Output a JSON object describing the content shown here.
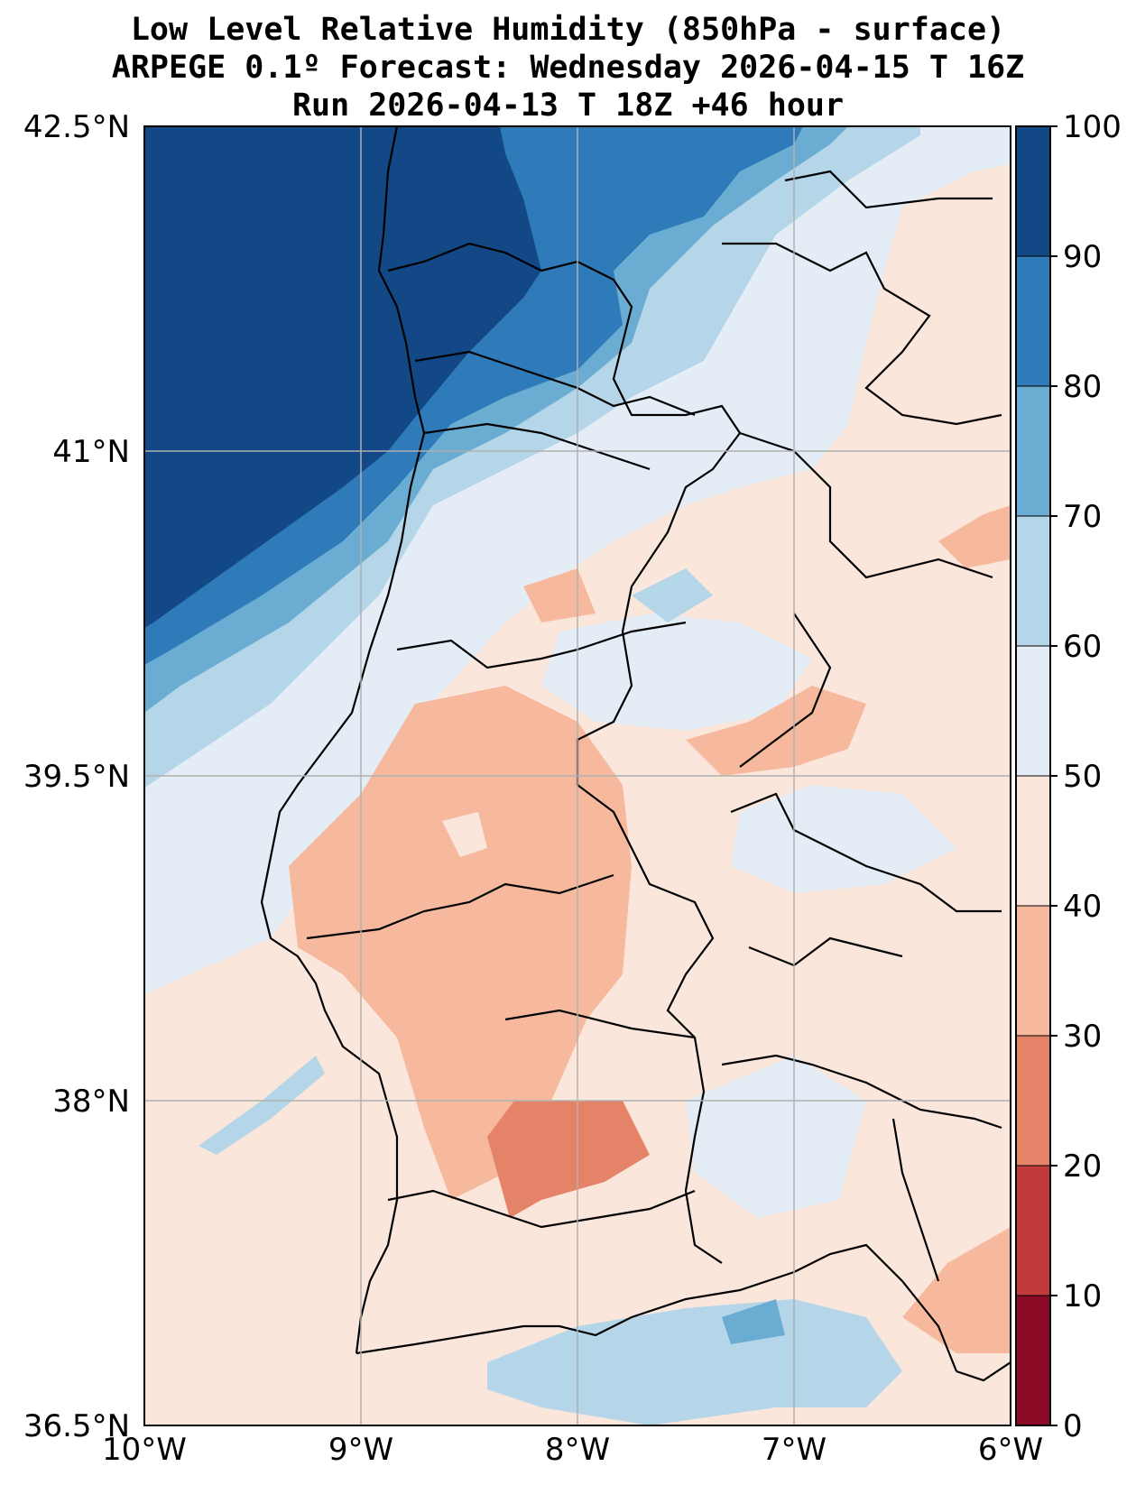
{
  "title": {
    "line1": "Low Level Relative Humidity (850hPa - surface)",
    "line2": "ARPEGE 0.1º Forecast: Wednesday 2026-04-15 T 16Z",
    "line3": "Run 2026-04-13 T 18Z +46 hour"
  },
  "map": {
    "lon_range": [
      -10,
      -6
    ],
    "lat_range": [
      36.5,
      42.5
    ],
    "lon_labels": [
      "10°W",
      "9°W",
      "8°W",
      "7°W",
      "6°W"
    ],
    "lat_labels": [
      "42.5°N",
      "41°N",
      "39.5°N",
      "38°N",
      "36.5°N"
    ],
    "gridlines": true
  },
  "colorbar": {
    "ticks": [
      "0",
      "10",
      "20",
      "30",
      "40",
      "50",
      "60",
      "70",
      "80",
      "90",
      "100"
    ],
    "levels": [
      {
        "range": "0-10",
        "color": "#8b0a26"
      },
      {
        "range": "10-20",
        "color": "#c13b3c"
      },
      {
        "range": "20-30",
        "color": "#e58368"
      },
      {
        "range": "30-40",
        "color": "#f6b99e"
      },
      {
        "range": "40-50",
        "color": "#fbe6dc"
      },
      {
        "range": "50-60",
        "color": "#e4edf5"
      },
      {
        "range": "60-70",
        "color": "#b4d6e8"
      },
      {
        "range": "70-80",
        "color": "#6aacd2"
      },
      {
        "range": "80-90",
        "color": "#2f7ab8"
      },
      {
        "range": "90-100",
        "color": "#124886"
      }
    ]
  }
}
